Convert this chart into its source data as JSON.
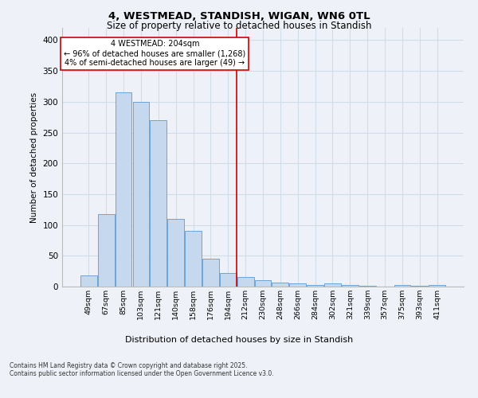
{
  "title1": "4, WESTMEAD, STANDISH, WIGAN, WN6 0TL",
  "title2": "Size of property relative to detached houses in Standish",
  "xlabel": "Distribution of detached houses by size in Standish",
  "ylabel": "Number of detached properties",
  "categories": [
    "49sqm",
    "67sqm",
    "85sqm",
    "103sqm",
    "121sqm",
    "140sqm",
    "158sqm",
    "176sqm",
    "194sqm",
    "212sqm",
    "230sqm",
    "248sqm",
    "266sqm",
    "284sqm",
    "302sqm",
    "321sqm",
    "339sqm",
    "357sqm",
    "375sqm",
    "393sqm",
    "411sqm"
  ],
  "values": [
    18,
    118,
    315,
    300,
    270,
    110,
    90,
    45,
    22,
    16,
    10,
    7,
    5,
    3,
    5,
    2,
    1,
    0,
    2,
    1,
    3
  ],
  "bar_color": "#c5d8ed",
  "bar_edge_color": "#5b9bd5",
  "grid_color": "#d0dce8",
  "bg_color": "#eef2f8",
  "vline_x": 8.5,
  "vline_color": "#cc0000",
  "annotation_title": "4 WESTMEAD: 204sqm",
  "annotation_line1": "← 96% of detached houses are smaller (1,268)",
  "annotation_line2": "4% of semi-detached houses are larger (49) →",
  "annotation_box_color": "#cc0000",
  "footer1": "Contains HM Land Registry data © Crown copyright and database right 2025.",
  "footer2": "Contains public sector information licensed under the Open Government Licence v3.0.",
  "ylim": [
    0,
    420
  ],
  "yticks": [
    0,
    50,
    100,
    150,
    200,
    250,
    300,
    350,
    400
  ]
}
